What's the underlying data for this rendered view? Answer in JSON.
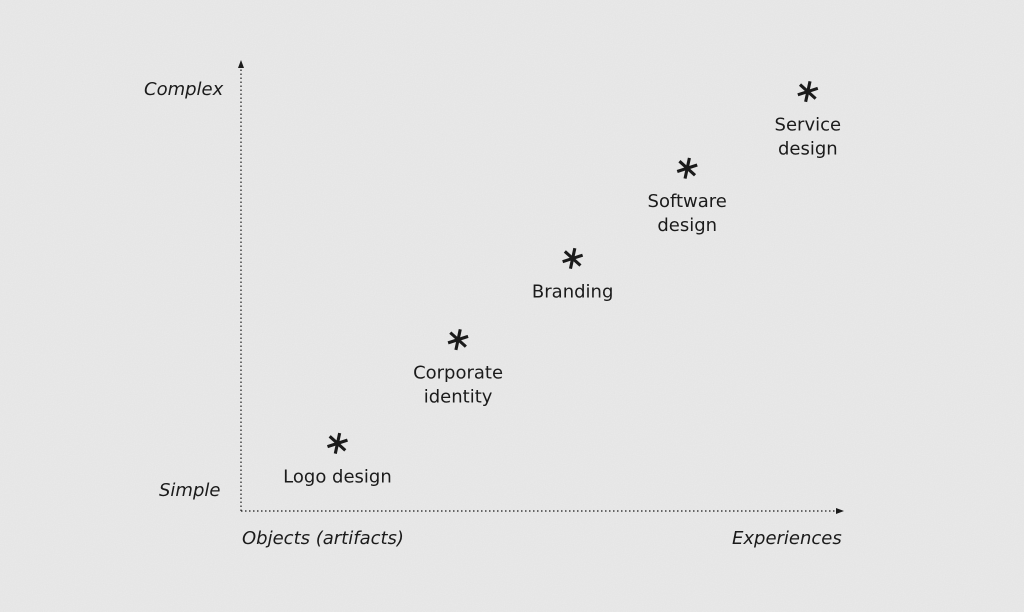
{
  "background_color": "#e9e9e9",
  "ink_color": "#1b1b1b",
  "chart_data": {
    "type": "scatter",
    "title": "",
    "xlabel": "",
    "ylabel": "",
    "x_axis": {
      "start_label": "Objects (artifacts)",
      "end_label": "Experiences"
    },
    "y_axis": {
      "start_label": "Simple",
      "end_label": "Complex"
    },
    "xlim": [
      0,
      10
    ],
    "ylim": [
      0,
      10
    ],
    "grid": false,
    "marker": "asterisk",
    "points": [
      {
        "label_lines": [
          "Logo design"
        ],
        "x": 1.6,
        "y": 1.5
      },
      {
        "label_lines": [
          "Corporate",
          "identity"
        ],
        "x": 3.6,
        "y": 3.8
      },
      {
        "label_lines": [
          "Branding"
        ],
        "x": 5.5,
        "y": 5.6
      },
      {
        "label_lines": [
          "Software",
          "design"
        ],
        "x": 7.4,
        "y": 7.6
      },
      {
        "label_lines": [
          "Service",
          "design"
        ],
        "x": 9.4,
        "y": 9.3
      }
    ]
  }
}
